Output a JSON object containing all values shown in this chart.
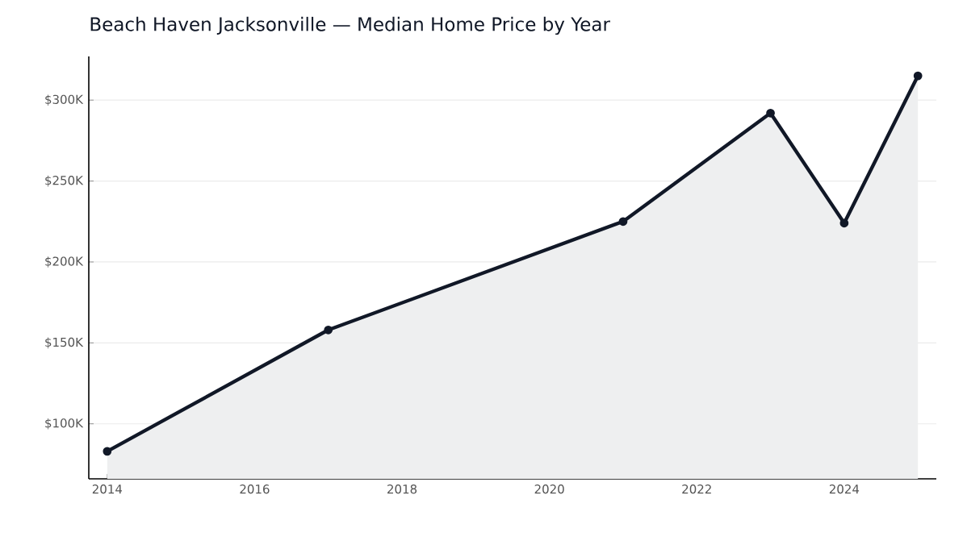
{
  "chart_data": {
    "type": "area",
    "title": "Beach Haven Jacksonville — Median Home Price by Year",
    "x": [
      2014,
      2017,
      2021,
      2023,
      2024,
      2025
    ],
    "values": [
      83000,
      158000,
      225000,
      292000,
      224000,
      315000
    ],
    "color": "#111827",
    "xlim": [
      2013.75,
      2025.25
    ],
    "ylim": [
      66000,
      327000
    ],
    "xticks": [
      2014,
      2016,
      2018,
      2020,
      2022,
      2024
    ],
    "yticks": [
      {
        "value": 100000,
        "label": "$100K"
      },
      {
        "value": 150000,
        "label": "$150K"
      },
      {
        "value": 200000,
        "label": "$200K"
      },
      {
        "value": 250000,
        "label": "$250K"
      },
      {
        "value": 300000,
        "label": "$300K"
      }
    ],
    "grid": "y",
    "marker": "circle"
  }
}
